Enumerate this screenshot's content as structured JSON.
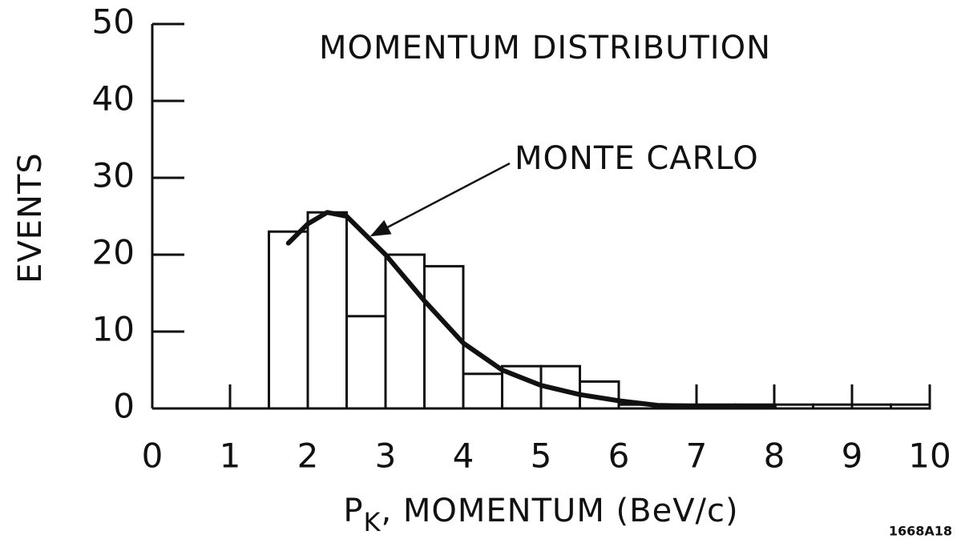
{
  "chart_data": {
    "type": "histogram",
    "title": "MOMENTUM DISTRIBUTION",
    "ylabel": "EVENTS",
    "xlabel": [
      "P",
      "K",
      ", MOMENTUM (BeV/c)"
    ],
    "figure_id": "1668A18",
    "bins": [
      1.5,
      2,
      2.5,
      3,
      3.5,
      4,
      4.5,
      5,
      5.5,
      6,
      6.5,
      7,
      7.5,
      8,
      8.5,
      9,
      9.5,
      10
    ],
    "counts": [
      23,
      25.5,
      12,
      20,
      18.5,
      4.5,
      5.5,
      5.5,
      3.5,
      0.5,
      0.5,
      0.5,
      0.5,
      0.5,
      0.5,
      0.5,
      0.5
    ],
    "color": "#111111",
    "curve": {
      "name": "MONTE CARLO",
      "color": "#111111",
      "x": [
        1.75,
        2,
        2.25,
        2.5,
        3,
        3.5,
        4,
        4.5,
        5,
        5.5,
        6,
        6.5,
        7,
        8
      ],
      "values": [
        21.5,
        24,
        25.5,
        25,
        20,
        14,
        8.5,
        5,
        3,
        1.8,
        1,
        0.4,
        0.3,
        0.2
      ]
    },
    "xlim": [
      0,
      10
    ],
    "ylim": [
      0,
      50
    ],
    "xticks": [
      0,
      1,
      2,
      3,
      4,
      5,
      6,
      7,
      8,
      9,
      10
    ],
    "yticks": [
      0,
      10,
      20,
      30,
      40,
      50
    ]
  }
}
